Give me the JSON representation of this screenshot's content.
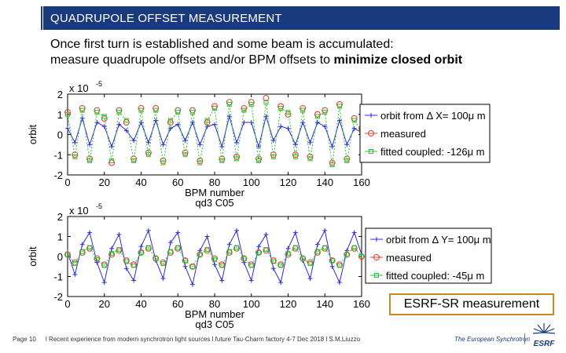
{
  "header": {
    "title": "QUADRUPOLE OFFSET MEASUREMENT"
  },
  "intro": {
    "line1": "Once first turn is established and some beam is accumulated:",
    "line2_prefix": "measure quadrupole offsets and/or BPM offsets to ",
    "line2_bold": "minimize closed orbit"
  },
  "note": "ESRF-SR measurement",
  "footer": {
    "page": "Page 10",
    "text": "l Recent experience from modern synchrotron light sources l future Tau-Charm factory 4-7 Dec 2018 l S.M.Liuzzo",
    "brand": "The European Synchrotron",
    "logo_text": "ESRF"
  },
  "colors": {
    "accent": "#1a3a7e",
    "series_orbit": "#2b2bd6",
    "series_measured": "#e03a2a",
    "series_fitted": "#2fbf2f",
    "note_border": "#c8881f"
  },
  "chart_data": [
    {
      "type": "line",
      "title": "qd3 C05",
      "xlabel": "BPM number",
      "ylabel": "orbit",
      "scale_label": "x 10",
      "scale_exp": "-5",
      "xlim": [
        0,
        160
      ],
      "ylim": [
        -2,
        2
      ],
      "xticks": [
        0,
        20,
        40,
        60,
        80,
        100,
        120,
        140,
        160
      ],
      "yticks": [
        2,
        1,
        0,
        -1,
        -2
      ],
      "legend": [
        "orbit from Δ X= 100μ m",
        "measured",
        "fitted coupled: -126μ m"
      ],
      "legend_position": "right",
      "series": [
        {
          "name": "orbit from Δ X= 100μ m",
          "x": [
            0,
            4,
            8,
            12,
            16,
            20,
            24,
            28,
            32,
            36,
            40,
            44,
            48,
            52,
            56,
            60,
            64,
            68,
            72,
            76,
            80,
            84,
            88,
            92,
            96,
            100,
            104,
            108,
            112,
            116,
            120,
            124,
            128,
            132,
            136,
            140,
            144,
            148,
            152,
            156,
            160
          ],
          "values": [
            0.3,
            -0.4,
            0.8,
            -0.5,
            0.6,
            0.4,
            -0.6,
            0.5,
            0.2,
            -0.3,
            0.6,
            -0.4,
            0.7,
            -0.5,
            0.3,
            0.5,
            -0.3,
            0.6,
            -0.5,
            0.4,
            0.5,
            -0.6,
            0.9,
            -0.4,
            0.6,
            0.6,
            -0.6,
            0.9,
            -0.3,
            0.4,
            0.3,
            -0.5,
            0.6,
            -0.4,
            0.6,
            0.4,
            -0.6,
            0.7,
            -0.5,
            0.3,
            0.1
          ]
        },
        {
          "name": "measured",
          "x": [
            0,
            4,
            8,
            12,
            16,
            20,
            24,
            28,
            32,
            36,
            40,
            44,
            48,
            52,
            56,
            60,
            64,
            68,
            72,
            76,
            80,
            84,
            88,
            92,
            96,
            100,
            104,
            108,
            112,
            116,
            120,
            124,
            128,
            132,
            136,
            140,
            144,
            148,
            152,
            156,
            160
          ],
          "values": [
            1.1,
            -1.0,
            1.3,
            -1.2,
            1.2,
            0.8,
            -1.4,
            1.2,
            0.6,
            -1.2,
            1.3,
            -0.9,
            1.3,
            -1.3,
            0.6,
            1.2,
            -0.9,
            1.2,
            -1.3,
            0.6,
            1.4,
            -1.2,
            1.6,
            -1.1,
            1.3,
            1.6,
            -1.2,
            1.8,
            -1.0,
            1.4,
            1.0,
            -1.0,
            1.3,
            -1.1,
            1.0,
            1.2,
            -1.4,
            1.5,
            -1.2,
            0.8,
            0.3
          ]
        },
        {
          "name": "fitted coupled: -126μ m",
          "x": [
            0,
            4,
            8,
            12,
            16,
            20,
            24,
            28,
            32,
            36,
            40,
            44,
            48,
            52,
            56,
            60,
            64,
            68,
            72,
            76,
            80,
            84,
            88,
            92,
            96,
            100,
            104,
            108,
            112,
            116,
            120,
            124,
            128,
            132,
            136,
            140,
            144,
            148,
            152,
            156,
            160
          ],
          "values": [
            1.0,
            -1.1,
            1.2,
            -1.3,
            1.1,
            0.9,
            -1.3,
            1.1,
            0.7,
            -1.3,
            1.2,
            -1.0,
            1.2,
            -1.4,
            0.7,
            1.1,
            -1.0,
            1.1,
            -1.4,
            0.7,
            1.3,
            -1.3,
            1.5,
            -1.2,
            1.2,
            1.5,
            -1.3,
            1.6,
            -1.1,
            1.3,
            1.1,
            -1.1,
            1.2,
            -1.2,
            0.9,
            1.1,
            -1.5,
            1.4,
            -1.3,
            0.7,
            0.2
          ]
        }
      ]
    },
    {
      "type": "line",
      "title": "qd3 C05",
      "xlabel": "BPM number",
      "ylabel": "orbit",
      "scale_label": "x 10",
      "scale_exp": "-5",
      "xlim": [
        0,
        160
      ],
      "ylim": [
        -2,
        2
      ],
      "xticks": [
        0,
        20,
        40,
        60,
        80,
        100,
        120,
        140,
        160
      ],
      "yticks": [
        2,
        1,
        0,
        -1,
        -2
      ],
      "legend": [
        "orbit from Δ Y= 100μ m",
        "measured",
        "fitted coupled: -45μ m"
      ],
      "legend_position": "right",
      "series": [
        {
          "name": "orbit from Δ Y= 100μ m",
          "x": [
            0,
            4,
            8,
            12,
            16,
            20,
            24,
            28,
            32,
            36,
            40,
            44,
            48,
            52,
            56,
            60,
            64,
            68,
            72,
            76,
            80,
            84,
            88,
            92,
            96,
            100,
            104,
            108,
            112,
            116,
            120,
            124,
            128,
            132,
            136,
            140,
            144,
            148,
            152,
            156,
            160
          ],
          "values": [
            0.2,
            -0.9,
            0.6,
            1.2,
            -0.3,
            -1.3,
            0.4,
            1.1,
            -0.6,
            -1.2,
            0.5,
            1.3,
            -0.2,
            -1.1,
            0.7,
            1.2,
            -0.5,
            -1.4,
            0.3,
            1.0,
            -0.4,
            -1.2,
            0.6,
            1.3,
            -0.3,
            -1.2,
            0.5,
            1.1,
            -0.6,
            -1.3,
            0.4,
            1.2,
            -0.2,
            -1.1,
            0.6,
            1.3,
            -0.5,
            -1.3,
            0.3,
            1.2,
            0.1
          ]
        },
        {
          "name": "measured",
          "x": [
            0,
            4,
            8,
            12,
            16,
            20,
            24,
            28,
            32,
            36,
            40,
            44,
            48,
            52,
            56,
            60,
            64,
            68,
            72,
            76,
            80,
            84,
            88,
            92,
            96,
            100,
            104,
            108,
            112,
            116,
            120,
            124,
            128,
            132,
            136,
            140,
            144,
            148,
            152,
            156,
            160
          ],
          "values": [
            0.1,
            -0.3,
            0.2,
            0.4,
            -0.1,
            -0.4,
            0.1,
            0.3,
            -0.2,
            -0.4,
            0.2,
            0.4,
            -0.1,
            -0.3,
            0.2,
            0.4,
            -0.2,
            -0.5,
            0.1,
            0.3,
            -0.1,
            -0.4,
            0.2,
            0.4,
            -0.1,
            -0.4,
            0.2,
            0.3,
            -0.2,
            -0.4,
            0.1,
            0.4,
            -0.1,
            -0.3,
            0.2,
            0.4,
            -0.2,
            -0.4,
            0.1,
            0.4,
            0.0
          ]
        },
        {
          "name": "fitted coupled: -45μ m",
          "x": [
            0,
            4,
            8,
            12,
            16,
            20,
            24,
            28,
            32,
            36,
            40,
            44,
            48,
            52,
            56,
            60,
            64,
            68,
            72,
            76,
            80,
            84,
            88,
            92,
            96,
            100,
            104,
            108,
            112,
            116,
            120,
            124,
            128,
            132,
            136,
            140,
            144,
            148,
            152,
            156,
            160
          ],
          "values": [
            0.1,
            -0.35,
            0.25,
            0.45,
            -0.15,
            -0.45,
            0.15,
            0.35,
            -0.25,
            -0.45,
            0.2,
            0.45,
            -0.1,
            -0.35,
            0.25,
            0.45,
            -0.2,
            -0.5,
            0.1,
            0.35,
            -0.15,
            -0.45,
            0.25,
            0.45,
            -0.1,
            -0.45,
            0.2,
            0.35,
            -0.25,
            -0.45,
            0.15,
            0.45,
            -0.1,
            -0.35,
            0.25,
            0.45,
            -0.2,
            -0.45,
            0.1,
            0.45,
            0.0
          ]
        }
      ]
    }
  ]
}
